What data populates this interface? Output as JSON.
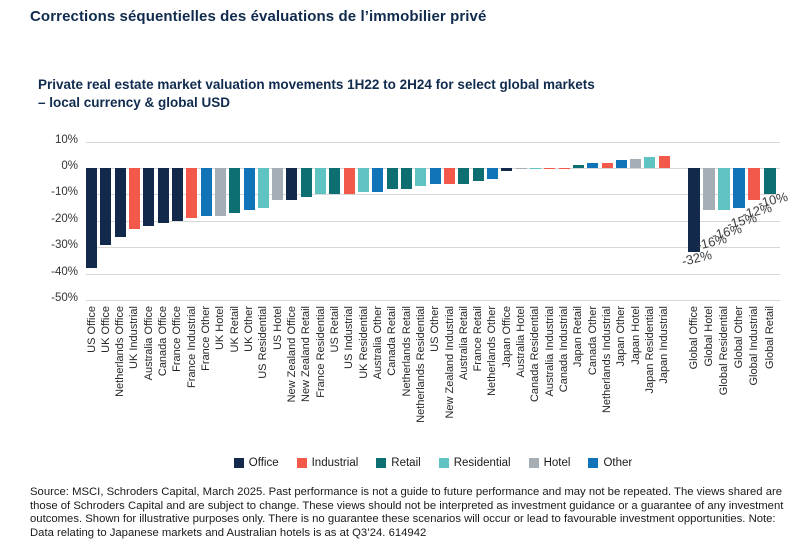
{
  "page_title": "Corrections séquentielles des évaluations de l’immobilier privé",
  "chart_data": {
    "type": "bar",
    "title_line1": "Private real estate market valuation movements 1H22 to 2H24 for select global markets",
    "title_line2": "– local currency & global USD",
    "unit": "%",
    "ylim": [
      -50,
      10
    ],
    "grid": "horizontal",
    "legend_position": "bottom",
    "y_ticks": [
      "10%",
      "0%",
      "-10%",
      "-20%",
      "-30%",
      "-40%",
      "-50%"
    ],
    "legend": [
      "Office",
      "Industrial",
      "Retail",
      "Residential",
      "Hotel",
      "Other"
    ],
    "series_colors": {
      "Office": "#12294b",
      "Industrial": "#f2594b",
      "Retail": "#0e6f72",
      "Residential": "#5fc3c2",
      "Hotel": "#a6aeb5",
      "Other": "#1173b8"
    },
    "bars": [
      {
        "label": "US Office",
        "value": -38
      },
      {
        "label": "UK Office",
        "value": -29
      },
      {
        "label": "Netherlands Office",
        "value": -26
      },
      {
        "label": "UK Industrial",
        "value": -23
      },
      {
        "label": "Australia Office",
        "value": -22
      },
      {
        "label": "Canada Office",
        "value": -21
      },
      {
        "label": "France Office",
        "value": -20
      },
      {
        "label": "France Industrial",
        "value": -19
      },
      {
        "label": "France Other",
        "value": -18
      },
      {
        "label": "UK Hotel",
        "value": -18
      },
      {
        "label": "UK Retail",
        "value": -17
      },
      {
        "label": "UK Other",
        "value": -16
      },
      {
        "label": "US Residential",
        "value": -15
      },
      {
        "label": "US Hotel",
        "value": -12
      },
      {
        "label": "New Zealand Office",
        "value": -12
      },
      {
        "label": "New Zealand Retail",
        "value": -11
      },
      {
        "label": "France Residential",
        "value": -10
      },
      {
        "label": "US Retail",
        "value": -10
      },
      {
        "label": "US Industrial",
        "value": -10
      },
      {
        "label": "UK Residential",
        "value": -9
      },
      {
        "label": "Australia Other",
        "value": -9
      },
      {
        "label": "Canada Retail",
        "value": -8
      },
      {
        "label": "Netherlands Retail",
        "value": -8
      },
      {
        "label": "Netherlands Residential",
        "value": -7
      },
      {
        "label": "US Other",
        "value": -6
      },
      {
        "label": "New Zealand Industrial",
        "value": -6
      },
      {
        "label": "Australia Retail",
        "value": -6
      },
      {
        "label": "France Retail",
        "value": -5
      },
      {
        "label": "Netherlands Other",
        "value": -4
      },
      {
        "label": "Japan Office",
        "value": -1
      },
      {
        "label": "Australia Hotel",
        "value": -0.5
      },
      {
        "label": "Canada Residential",
        "value": -0.5
      },
      {
        "label": "Australia Industrial",
        "value": -0.5
      },
      {
        "label": "Canada Industrial",
        "value": -0.5
      },
      {
        "label": "Japan Retail",
        "value": 1
      },
      {
        "label": "Canada Other",
        "value": 2
      },
      {
        "label": "Netherlands Industrial",
        "value": 2
      },
      {
        "label": "Japan Other",
        "value": 3
      },
      {
        "label": "Japan Hotel",
        "value": 3.5
      },
      {
        "label": "Japan Residential",
        "value": 4
      },
      {
        "label": "Japan Industrial",
        "value": 4.5
      }
    ],
    "global_bars": [
      {
        "label": "Global Office",
        "value": -32,
        "data_label": "-32%"
      },
      {
        "label": "Global Hotel",
        "value": -16,
        "data_label": "-16%"
      },
      {
        "label": "Global Residential",
        "value": -16,
        "data_label": "-16%"
      },
      {
        "label": "Global Other",
        "value": -15,
        "data_label": "-15%"
      },
      {
        "label": "Global Industrial",
        "value": -12,
        "data_label": "-12%"
      },
      {
        "label": "Global Retail",
        "value": -10,
        "data_label": "-10%"
      }
    ]
  },
  "footer": "Source: MSCI, Schroders Capital, March 2025. Past performance is not a guide to future performance and may not be repeated. The views shared are those of Schroders Capital and are subject to change. These views should not be interpreted as investment guidance or a guarantee of any investment outcomes. Shown for illustrative purposes only. There is no guarantee these scenarios will occur or lead to favourable investment opportunities. Note: Data relating to Japanese markets and Australian hotels is as at Q3’24. 614942"
}
